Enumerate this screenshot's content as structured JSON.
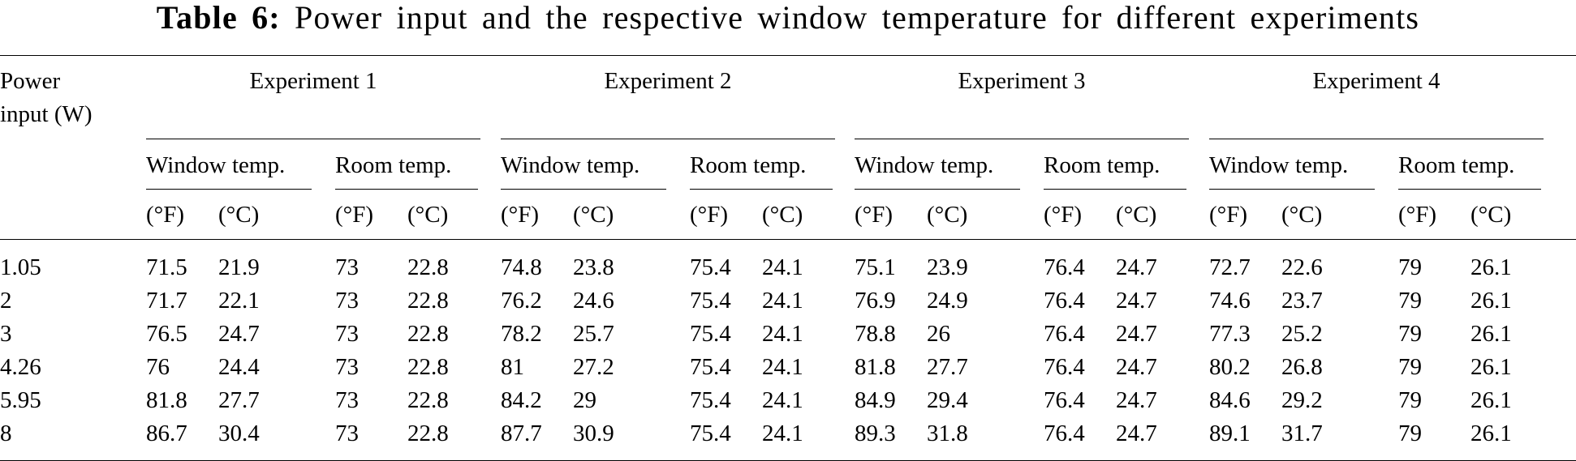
{
  "caption": {
    "label": "Table 6:",
    "text": "Power input and the respective window temperature for different experiments"
  },
  "table": {
    "stub_header_line1": "Power",
    "stub_header_line2": "input (W)",
    "experiments": [
      "Experiment 1",
      "Experiment 2",
      "Experiment 3",
      "Experiment 4"
    ],
    "subheaders": [
      "Window temp.",
      "Room temp."
    ],
    "units": [
      "(°F)",
      "(°C)"
    ],
    "rows": [
      {
        "power": "1.05",
        "values": [
          "71.5",
          "21.9",
          "73",
          "22.8",
          "74.8",
          "23.8",
          "75.4",
          "24.1",
          "75.1",
          "23.9",
          "76.4",
          "24.7",
          "72.7",
          "22.6",
          "79",
          "26.1"
        ]
      },
      {
        "power": "2",
        "values": [
          "71.7",
          "22.1",
          "73",
          "22.8",
          "76.2",
          "24.6",
          "75.4",
          "24.1",
          "76.9",
          "24.9",
          "76.4",
          "24.7",
          "74.6",
          "23.7",
          "79",
          "26.1"
        ]
      },
      {
        "power": "3",
        "values": [
          "76.5",
          "24.7",
          "73",
          "22.8",
          "78.2",
          "25.7",
          "75.4",
          "24.1",
          "78.8",
          "26",
          "76.4",
          "24.7",
          "77.3",
          "25.2",
          "79",
          "26.1"
        ]
      },
      {
        "power": "4.26",
        "values": [
          "76",
          "24.4",
          "73",
          "22.8",
          "81",
          "27.2",
          "75.4",
          "24.1",
          "81.8",
          "27.7",
          "76.4",
          "24.7",
          "80.2",
          "26.8",
          "79",
          "26.1"
        ]
      },
      {
        "power": "5.95",
        "values": [
          "81.8",
          "27.7",
          "73",
          "22.8",
          "84.2",
          "29",
          "75.4",
          "24.1",
          "84.9",
          "29.4",
          "76.4",
          "24.7",
          "84.6",
          "29.2",
          "79",
          "26.1"
        ]
      },
      {
        "power": "8",
        "values": [
          "86.7",
          "30.4",
          "73",
          "22.8",
          "87.7",
          "30.9",
          "75.4",
          "24.1",
          "89.3",
          "31.8",
          "76.4",
          "24.7",
          "89.1",
          "31.7",
          "79",
          "26.1"
        ]
      }
    ]
  }
}
